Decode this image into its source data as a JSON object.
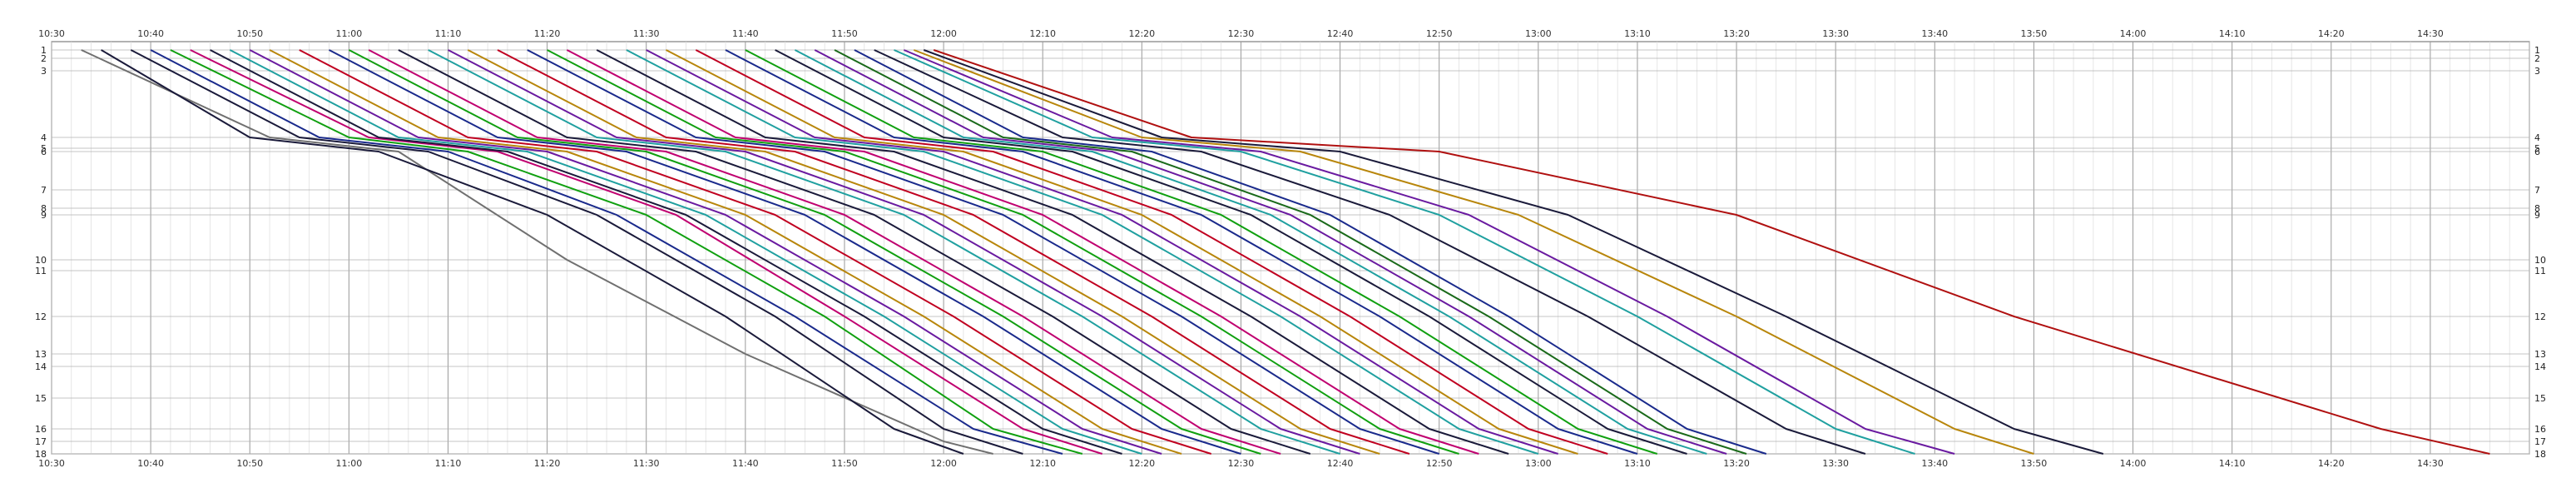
{
  "chart_data": {
    "type": "line",
    "title": "",
    "xlabel": "",
    "ylabel": "",
    "grid": true,
    "legend": "none",
    "x_time_range": [
      "10:30",
      "14:40"
    ],
    "time_labels": [
      "10:30",
      "10:40",
      "10:50",
      "11:00",
      "11:10",
      "11:20",
      "11:30",
      "11:40",
      "11:50",
      "12:00",
      "12:10",
      "12:20",
      "12:30",
      "12:40",
      "12:50",
      "13:00",
      "13:10",
      "13:20",
      "13:30",
      "13:40",
      "13:50",
      "14:00",
      "14:10",
      "14:20",
      "14:30"
    ],
    "ylim": [
      1,
      18
    ],
    "station_numbers": [
      1,
      2,
      3,
      4,
      5,
      6,
      7,
      8,
      9,
      10,
      11,
      12,
      13,
      14,
      15,
      16,
      17,
      18
    ],
    "series": [
      {
        "color": "#707070",
        "x": [
          "10:33",
          "10:52",
          "11:05",
          "11:22",
          "11:40",
          "12:00",
          "12:05"
        ],
        "y": [
          1,
          4,
          6,
          10,
          13,
          17,
          18
        ]
      },
      {
        "color": "#1a1a3a",
        "x": [
          "10:35",
          "10:50",
          "11:03",
          "11:20",
          "11:38",
          "11:55",
          "12:02"
        ],
        "y": [
          1,
          4,
          6,
          9,
          12,
          16,
          18
        ]
      },
      {
        "color": "#1a1a3a",
        "x": [
          "10:38",
          "10:55",
          "11:08",
          "11:25",
          "11:43",
          "12:00",
          "12:08"
        ],
        "y": [
          1,
          4,
          6,
          9,
          12,
          16,
          18
        ]
      },
      {
        "color": "#1a2a8c",
        "x": [
          "10:40",
          "10:57",
          "11:10",
          "11:27",
          "11:45",
          "12:03",
          "12:12"
        ],
        "y": [
          1,
          4,
          6,
          9,
          12,
          16,
          18
        ]
      },
      {
        "color": "#10a010",
        "x": [
          "10:42",
          "11:00",
          "11:12",
          "11:30",
          "11:48",
          "12:05",
          "12:14"
        ],
        "y": [
          1,
          4,
          6,
          9,
          12,
          16,
          18
        ]
      },
      {
        "color": "#c00070",
        "x": [
          "10:44",
          "11:02",
          "11:15",
          "11:33",
          "11:50",
          "12:08",
          "12:16"
        ],
        "y": [
          1,
          4,
          6,
          9,
          12,
          16,
          18
        ]
      },
      {
        "color": "#1a1a3a",
        "x": [
          "10:46",
          "11:03",
          "11:16",
          "11:34",
          "11:52",
          "12:10",
          "12:18"
        ],
        "y": [
          1,
          4,
          6,
          9,
          12,
          16,
          18
        ]
      },
      {
        "color": "#20a0a0",
        "x": [
          "10:48",
          "11:05",
          "11:18",
          "11:36",
          "11:54",
          "12:12",
          "12:20"
        ],
        "y": [
          1,
          4,
          6,
          9,
          12,
          16,
          18
        ]
      },
      {
        "color": "#6a1aa0",
        "x": [
          "10:50",
          "11:07",
          "11:20",
          "11:38",
          "11:56",
          "12:14",
          "12:22"
        ],
        "y": [
          1,
          4,
          6,
          9,
          12,
          16,
          18
        ]
      },
      {
        "color": "#b8860b",
        "x": [
          "10:52",
          "11:09",
          "11:22",
          "11:40",
          "11:58",
          "12:16",
          "12:24"
        ],
        "y": [
          1,
          4,
          6,
          9,
          12,
          16,
          18
        ]
      },
      {
        "color": "#c00020",
        "x": [
          "10:55",
          "11:12",
          "11:25",
          "11:43",
          "12:01",
          "12:19",
          "12:27"
        ],
        "y": [
          1,
          4,
          6,
          9,
          12,
          16,
          18
        ]
      },
      {
        "color": "#1a2a8c",
        "x": [
          "10:58",
          "11:15",
          "11:28",
          "11:46",
          "12:04",
          "12:22",
          "12:30"
        ],
        "y": [
          1,
          4,
          6,
          9,
          12,
          16,
          18
        ]
      },
      {
        "color": "#10a010",
        "x": [
          "11:00",
          "11:17",
          "11:30",
          "11:48",
          "12:06",
          "12:24",
          "12:32"
        ],
        "y": [
          1,
          4,
          6,
          9,
          12,
          16,
          18
        ]
      },
      {
        "color": "#c00070",
        "x": [
          "11:02",
          "11:19",
          "11:32",
          "11:50",
          "12:08",
          "12:26",
          "12:34"
        ],
        "y": [
          1,
          4,
          6,
          9,
          12,
          16,
          18
        ]
      },
      {
        "color": "#1a1a3a",
        "x": [
          "11:05",
          "11:22",
          "11:35",
          "11:53",
          "12:11",
          "12:29",
          "12:37"
        ],
        "y": [
          1,
          4,
          6,
          9,
          12,
          16,
          18
        ]
      },
      {
        "color": "#20a0a0",
        "x": [
          "11:08",
          "11:25",
          "11:38",
          "11:56",
          "12:14",
          "12:32",
          "12:40"
        ],
        "y": [
          1,
          4,
          6,
          9,
          12,
          16,
          18
        ]
      },
      {
        "color": "#6a1aa0",
        "x": [
          "11:10",
          "11:27",
          "11:40",
          "11:58",
          "12:16",
          "12:34",
          "12:42"
        ],
        "y": [
          1,
          4,
          6,
          9,
          12,
          16,
          18
        ]
      },
      {
        "color": "#b8860b",
        "x": [
          "11:12",
          "11:29",
          "11:42",
          "12:00",
          "12:18",
          "12:36",
          "12:44"
        ],
        "y": [
          1,
          4,
          6,
          9,
          12,
          16,
          18
        ]
      },
      {
        "color": "#c00020",
        "x": [
          "11:15",
          "11:32",
          "11:45",
          "12:03",
          "12:21",
          "12:39",
          "12:47"
        ],
        "y": [
          1,
          4,
          6,
          9,
          12,
          16,
          18
        ]
      },
      {
        "color": "#1a2a8c",
        "x": [
          "11:18",
          "11:35",
          "11:48",
          "12:06",
          "12:24",
          "12:42",
          "12:50"
        ],
        "y": [
          1,
          4,
          6,
          9,
          12,
          16,
          18
        ]
      },
      {
        "color": "#10a010",
        "x": [
          "11:20",
          "11:37",
          "11:50",
          "12:08",
          "12:26",
          "12:44",
          "12:52"
        ],
        "y": [
          1,
          4,
          6,
          9,
          12,
          16,
          18
        ]
      },
      {
        "color": "#c00070",
        "x": [
          "11:22",
          "11:39",
          "11:52",
          "12:10",
          "12:28",
          "12:46",
          "12:54"
        ],
        "y": [
          1,
          4,
          6,
          9,
          12,
          16,
          18
        ]
      },
      {
        "color": "#1a1a3a",
        "x": [
          "11:25",
          "11:42",
          "11:55",
          "12:13",
          "12:31",
          "12:49",
          "12:57"
        ],
        "y": [
          1,
          4,
          6,
          9,
          12,
          16,
          18
        ]
      },
      {
        "color": "#20a0a0",
        "x": [
          "11:28",
          "11:45",
          "11:58",
          "12:16",
          "12:34",
          "12:52",
          "13:00"
        ],
        "y": [
          1,
          4,
          6,
          9,
          12,
          16,
          18
        ]
      },
      {
        "color": "#6a1aa0",
        "x": [
          "11:30",
          "11:47",
          "12:00",
          "12:18",
          "12:36",
          "12:54",
          "13:02"
        ],
        "y": [
          1,
          4,
          6,
          9,
          12,
          16,
          18
        ]
      },
      {
        "color": "#b8860b",
        "x": [
          "11:32",
          "11:49",
          "12:02",
          "12:20",
          "12:38",
          "12:56",
          "13:04"
        ],
        "y": [
          1,
          4,
          6,
          9,
          12,
          16,
          18
        ]
      },
      {
        "color": "#c00020",
        "x": [
          "11:35",
          "11:52",
          "12:05",
          "12:23",
          "12:41",
          "12:59",
          "13:07"
        ],
        "y": [
          1,
          4,
          6,
          9,
          12,
          16,
          18
        ]
      },
      {
        "color": "#1a2a8c",
        "x": [
          "11:38",
          "11:55",
          "12:08",
          "12:26",
          "12:44",
          "13:02",
          "13:10"
        ],
        "y": [
          1,
          4,
          6,
          9,
          12,
          16,
          18
        ]
      },
      {
        "color": "#10a010",
        "x": [
          "11:40",
          "11:57",
          "12:10",
          "12:28",
          "12:46",
          "13:04",
          "13:12"
        ],
        "y": [
          1,
          4,
          6,
          9,
          12,
          16,
          18
        ]
      },
      {
        "color": "#1a1a3a",
        "x": [
          "11:43",
          "12:00",
          "12:13",
          "12:31",
          "12:49",
          "13:07",
          "13:15"
        ],
        "y": [
          1,
          4,
          6,
          9,
          12,
          16,
          18
        ]
      },
      {
        "color": "#20a0a0",
        "x": [
          "11:45",
          "12:02",
          "12:15",
          "12:33",
          "12:51",
          "13:09",
          "13:17"
        ],
        "y": [
          1,
          4,
          6,
          9,
          12,
          16,
          18
        ]
      },
      {
        "color": "#6a1aa0",
        "x": [
          "11:47",
          "12:04",
          "12:17",
          "12:35",
          "12:53",
          "13:11",
          "13:19"
        ],
        "y": [
          1,
          4,
          6,
          9,
          12,
          16,
          18
        ]
      },
      {
        "color": "#1a6a1a",
        "x": [
          "11:49",
          "12:06",
          "12:19",
          "12:37",
          "12:55",
          "13:13",
          "13:21"
        ],
        "y": [
          1,
          4,
          6,
          9,
          12,
          16,
          18
        ]
      },
      {
        "color": "#1a2a8c",
        "x": [
          "11:51",
          "12:08",
          "12:21",
          "12:39",
          "12:57",
          "13:15",
          "13:23"
        ],
        "y": [
          1,
          4,
          6,
          9,
          12,
          16,
          18
        ]
      },
      {
        "color": "#1a1a3a",
        "x": [
          "11:53",
          "12:12",
          "12:26",
          "12:45",
          "13:05",
          "13:25",
          "13:33"
        ],
        "y": [
          1,
          4,
          6,
          9,
          12,
          16,
          18
        ]
      },
      {
        "color": "#20a0a0",
        "x": [
          "11:55",
          "12:15",
          "12:30",
          "12:50",
          "13:10",
          "13:30",
          "13:38"
        ],
        "y": [
          1,
          4,
          6,
          9,
          12,
          16,
          18
        ]
      },
      {
        "color": "#6a1aa0",
        "x": [
          "11:56",
          "12:17",
          "12:32",
          "12:53",
          "13:13",
          "13:33",
          "13:42"
        ],
        "y": [
          1,
          4,
          6,
          9,
          12,
          16,
          18
        ]
      },
      {
        "color": "#b8860b",
        "x": [
          "11:57",
          "12:20",
          "12:36",
          "12:58",
          "13:20",
          "13:42",
          "13:50"
        ],
        "y": [
          1,
          4,
          6,
          9,
          12,
          16,
          18
        ]
      },
      {
        "color": "#1a1a3a",
        "x": [
          "11:58",
          "12:22",
          "12:40",
          "13:03",
          "13:25",
          "13:48",
          "13:57"
        ],
        "y": [
          1,
          4,
          6,
          9,
          12,
          16,
          18
        ]
      },
      {
        "color": "#b01010",
        "x": [
          "11:59",
          "12:25",
          "12:50",
          "13:20",
          "13:48",
          "14:25",
          "14:36"
        ],
        "y": [
          1,
          4,
          6,
          9,
          12,
          16,
          18
        ]
      }
    ]
  }
}
